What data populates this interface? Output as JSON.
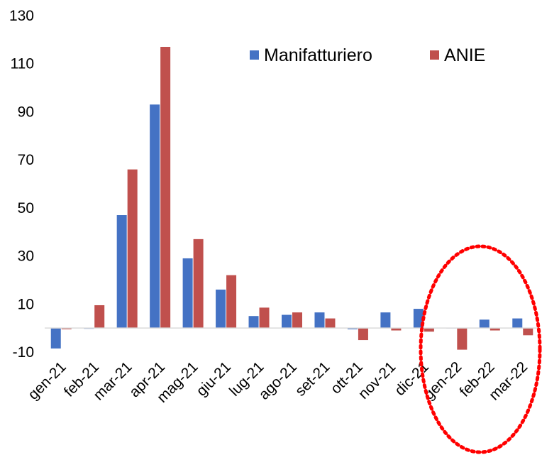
{
  "chart_data": {
    "type": "bar",
    "categories": [
      "gen-21",
      "feb-21",
      "mar-21",
      "apr-21",
      "mag-21",
      "giu-21",
      "lug-21",
      "ago-21",
      "set-21",
      "ott-21",
      "nov-21",
      "dic-21",
      "gen-22",
      "feb-22",
      "mar-22"
    ],
    "series": [
      {
        "name": "Manifatturiero",
        "color": "#4472C4",
        "values": [
          -8.5,
          -0.3,
          47,
          93,
          29,
          16,
          5,
          5.5,
          6.5,
          -0.5,
          6.5,
          8,
          0,
          3.5,
          4
        ]
      },
      {
        "name": "ANIE",
        "color": "#C0504D",
        "values": [
          -0.5,
          9.5,
          66,
          117,
          37,
          22,
          8.5,
          6.5,
          4,
          -5,
          -1,
          -1.5,
          -9,
          -1,
          -3
        ]
      }
    ],
    "ylim": [
      -10,
      130
    ],
    "yticks": [
      -10,
      10,
      30,
      50,
      70,
      90,
      110,
      130
    ],
    "grid": false,
    "legend_position": "top-right",
    "annotation": {
      "shape": "dashed-ellipse",
      "color": "#FF0000",
      "highlights": [
        "gen-22",
        "feb-22",
        "mar-22"
      ]
    }
  }
}
